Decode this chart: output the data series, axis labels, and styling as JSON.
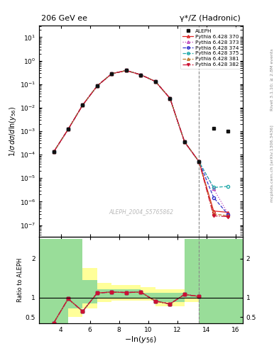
{
  "title_left": "206 GeV ee",
  "title_right": "γ*/Z (Hadronic)",
  "ylabel_top": "1/σ dσ/dln(y_{56})",
  "ylabel_bottom": "Ratio to ALEPH",
  "right_label_top": "Rivet 3.1.10; ≥ 2.8M events",
  "right_label_bottom": "mcplots.cern.ch [arXiv:1306.3436]",
  "watermark": "ALEPH_2004_S5765862",
  "xlim": [
    2.5,
    16.5
  ],
  "dashed_vline": 13.5,
  "data_x": [
    3.5,
    4.5,
    5.5,
    6.5,
    7.5,
    8.5,
    9.5,
    10.5,
    11.5,
    12.5,
    13.5,
    14.5,
    15.5
  ],
  "aleph_y": [
    0.00013,
    0.0012,
    0.013,
    0.085,
    0.28,
    0.38,
    0.25,
    0.13,
    0.025,
    0.00035,
    5e-05,
    0.0013,
    0.001
  ],
  "py370_y": [
    0.00013,
    0.0012,
    0.013,
    0.085,
    0.28,
    0.38,
    0.25,
    0.13,
    0.025,
    0.00035,
    5e-05,
    4e-07,
    3.5e-07
  ],
  "py373_y": [
    0.00013,
    0.0012,
    0.013,
    0.085,
    0.28,
    0.38,
    0.25,
    0.13,
    0.025,
    0.00035,
    5e-05,
    3.5e-06,
    3e-07
  ],
  "py374_y": [
    0.00013,
    0.0012,
    0.013,
    0.085,
    0.28,
    0.38,
    0.25,
    0.13,
    0.025,
    0.00035,
    5e-05,
    1.5e-06,
    2.8e-07
  ],
  "py375_y": [
    0.00013,
    0.0012,
    0.013,
    0.085,
    0.28,
    0.38,
    0.25,
    0.13,
    0.025,
    0.00035,
    5e-05,
    4e-06,
    4.5e-06
  ],
  "py381_y": [
    0.00013,
    0.0012,
    0.013,
    0.085,
    0.28,
    0.38,
    0.25,
    0.13,
    0.025,
    0.00035,
    5e-05,
    3e-07,
    2.5e-07
  ],
  "py382_y": [
    0.00013,
    0.0012,
    0.013,
    0.085,
    0.28,
    0.38,
    0.25,
    0.13,
    0.025,
    0.00035,
    5e-05,
    2.5e-07,
    2.3e-07
  ],
  "ratio_x": [
    3.5,
    4.5,
    5.5,
    6.5,
    7.5,
    8.5,
    9.5,
    10.5,
    11.5,
    12.5,
    13.5
  ],
  "ratio_main": [
    0.35,
    0.97,
    0.65,
    1.12,
    1.14,
    1.13,
    1.14,
    0.91,
    0.84,
    1.08,
    1.03
  ],
  "band_edges": [
    2.5,
    3.5,
    4.5,
    5.5,
    6.5,
    7.5,
    8.5,
    9.5,
    10.5,
    11.5,
    12.5,
    13.5,
    14.5,
    15.5,
    16.5
  ],
  "green_lo": [
    0.35,
    0.35,
    0.72,
    0.85,
    1.0,
    1.0,
    1.0,
    1.0,
    0.88,
    0.88,
    1.0,
    0.35,
    0.35,
    0.35
  ],
  "green_hi": [
    2.5,
    2.5,
    2.5,
    1.45,
    1.22,
    1.22,
    1.22,
    1.13,
    1.13,
    1.13,
    2.5,
    2.5,
    2.5,
    2.5
  ],
  "yellow_lo": [
    0.35,
    0.35,
    0.5,
    0.72,
    0.88,
    0.92,
    0.92,
    0.92,
    0.78,
    0.78,
    0.88,
    0.35,
    0.35,
    0.35
  ],
  "yellow_hi": [
    2.5,
    2.5,
    2.5,
    1.75,
    1.38,
    1.32,
    1.32,
    1.27,
    1.22,
    1.22,
    2.5,
    2.5,
    2.5,
    2.5
  ],
  "colors": {
    "aleph": "#111111",
    "py370": "#dd2222",
    "py373": "#bb44bb",
    "py374": "#3333cc",
    "py375": "#22aaaa",
    "py381": "#bb7722",
    "py382": "#cc1133"
  },
  "bg_color": "#ffffff",
  "plot_bg": "#ffffff"
}
